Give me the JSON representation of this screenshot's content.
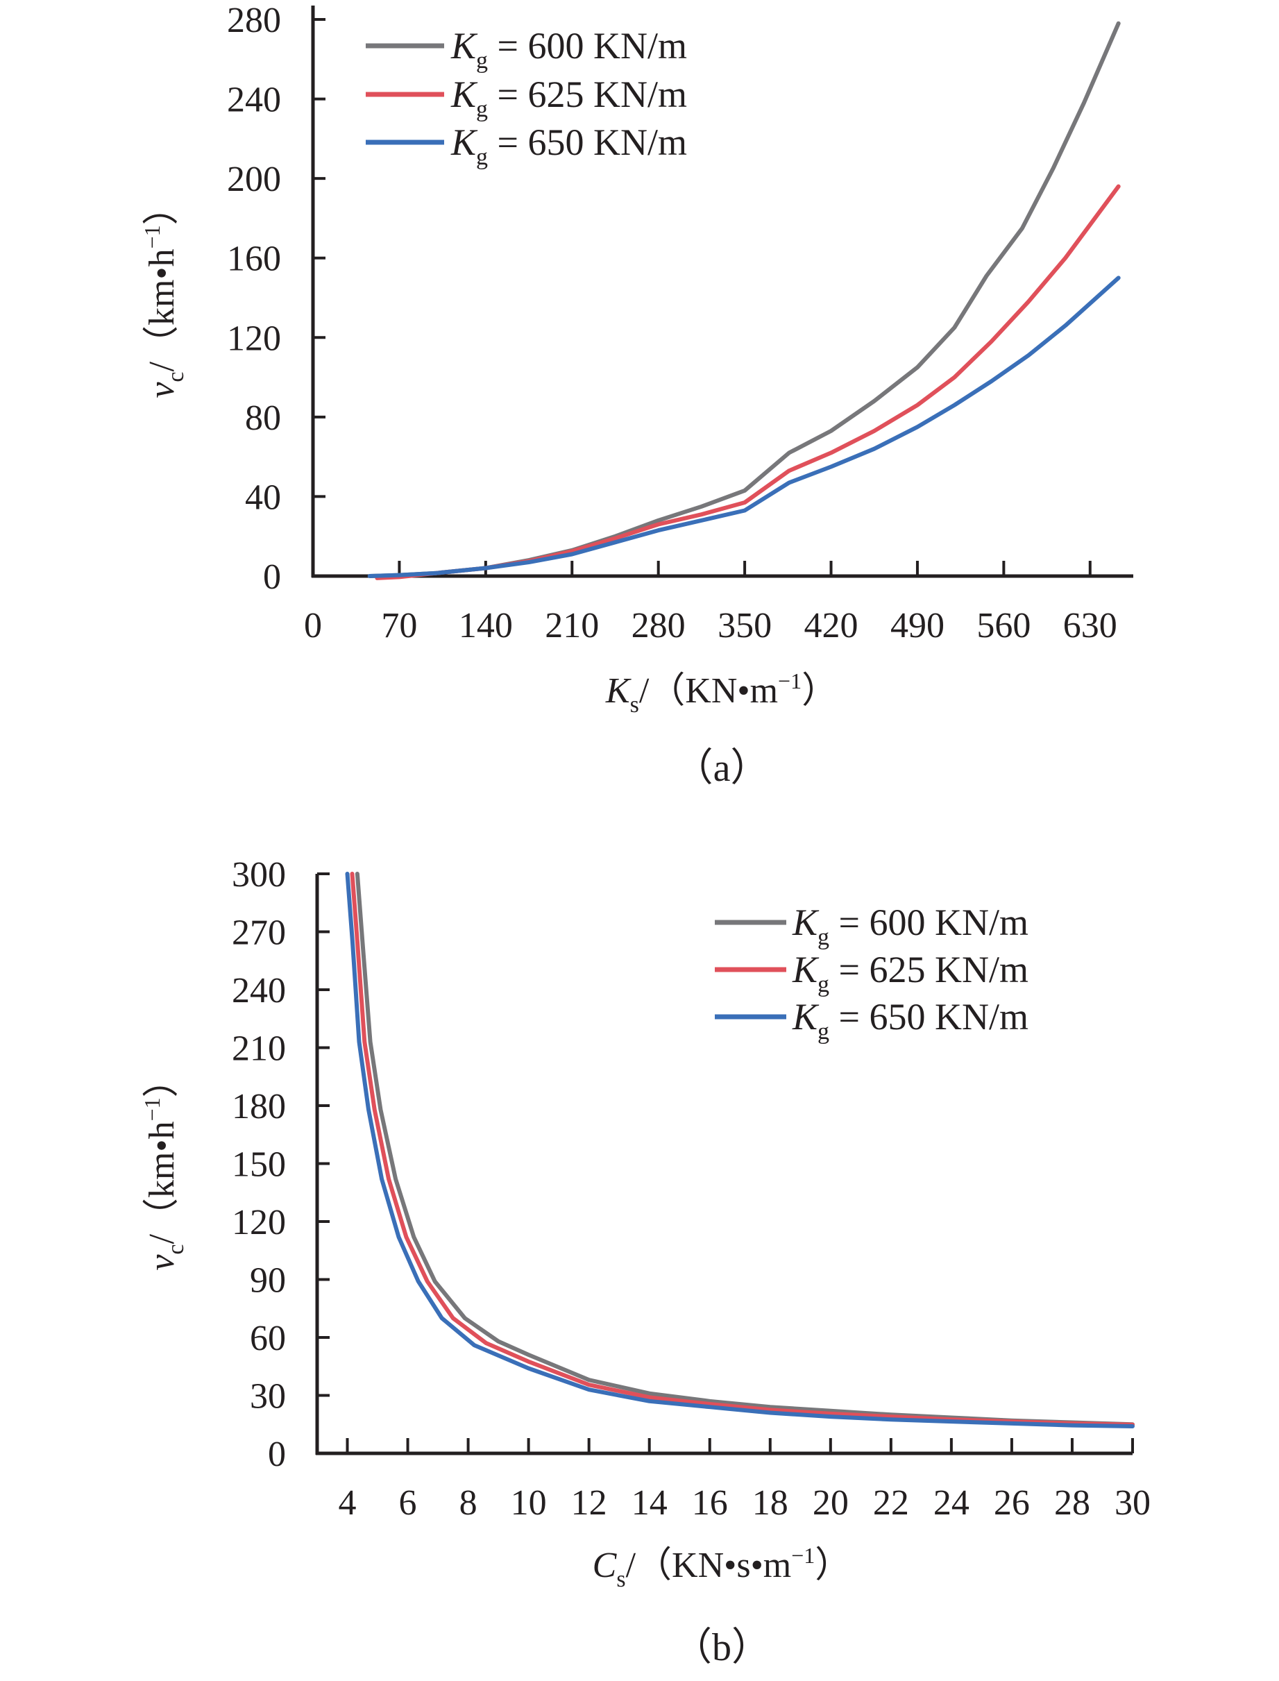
{
  "chart_data": [
    {
      "id": "a",
      "type": "line",
      "caption": "（a）",
      "title": "",
      "xlabel": {
        "var": "K",
        "sub": "s",
        "unit": "/（KN•m",
        "sup": "−1",
        "close": "）"
      },
      "ylabel": {
        "var": "v",
        "sub": "c",
        "unit": "/（km•h",
        "sup": "−1",
        "close": "）"
      },
      "xlim": [
        0,
        665
      ],
      "ylim": [
        0,
        280
      ],
      "xticks": [
        0,
        70,
        140,
        210,
        280,
        350,
        420,
        490,
        560,
        630
      ],
      "yticks": [
        0,
        40,
        80,
        120,
        160,
        200,
        240,
        280
      ],
      "grid": false,
      "legend_position": "top-left",
      "series": [
        {
          "name": "Kg = 600 KN/m",
          "label_var": "K",
          "label_sub": "g",
          "label_rest": " = 600 KN/m",
          "color": "#77777a",
          "x": [
            46,
            70,
            100,
            140,
            175,
            210,
            245,
            280,
            315,
            350,
            386,
            420,
            455,
            490,
            520,
            546,
            575,
            600,
            625,
            653
          ],
          "y": [
            0,
            0.5,
            1.5,
            4,
            8,
            13,
            20,
            28,
            35,
            43,
            62,
            73,
            88,
            105,
            125,
            151,
            175,
            205,
            238,
            278
          ]
        },
        {
          "name": "Kg = 625 KN/m",
          "label_var": "K",
          "label_sub": "g",
          "label_rest": " = 625 KN/m",
          "color": "#e0505a",
          "x": [
            52,
            70,
            100,
            140,
            175,
            210,
            245,
            280,
            315,
            350,
            386,
            420,
            455,
            490,
            520,
            550,
            580,
            610,
            653
          ],
          "y": [
            -1,
            -0.5,
            1.5,
            4,
            7.5,
            12.5,
            19,
            26,
            31,
            37,
            53,
            62,
            73,
            86,
            100,
            118,
            138,
            160,
            196
          ]
        },
        {
          "name": "Kg = 650 KN/m",
          "label_var": "K",
          "label_sub": "g",
          "label_rest": " = 650 KN/m",
          "color": "#3a6fb8",
          "x": [
            46,
            70,
            100,
            140,
            175,
            210,
            245,
            280,
            315,
            350,
            386,
            420,
            455,
            490,
            520,
            550,
            580,
            610,
            653
          ],
          "y": [
            0,
            0.5,
            1.5,
            4,
            7,
            11,
            17,
            23,
            28,
            33,
            47,
            55,
            64,
            75,
            86,
            98,
            111,
            126,
            150
          ]
        }
      ]
    },
    {
      "id": "b",
      "type": "line",
      "caption": "（b）",
      "title": "",
      "xlabel": {
        "var": "C",
        "sub": "s",
        "unit": "/（KN•s•m",
        "sup": "−1",
        "close": "）"
      },
      "ylabel": {
        "var": "v",
        "sub": "c",
        "unit": "/（km•h",
        "sup": "−1",
        "close": "）"
      },
      "xlim": [
        3,
        30
      ],
      "ylim": [
        0,
        300
      ],
      "xticks": [
        4,
        6,
        8,
        10,
        12,
        14,
        16,
        18,
        20,
        22,
        24,
        26,
        28,
        30
      ],
      "yticks": [
        0,
        30,
        60,
        90,
        120,
        150,
        180,
        210,
        240,
        270,
        300
      ],
      "grid": false,
      "legend_position": "top-right",
      "series": [
        {
          "name": "Kg = 600 KN/m",
          "label_var": "K",
          "label_sub": "g",
          "label_rest": " = 600 KN/m",
          "color": "#77777a",
          "x": [
            4.33,
            4.5,
            4.76,
            5.1,
            5.6,
            6.2,
            6.9,
            7.89,
            9,
            10,
            12,
            14,
            16,
            18,
            20,
            22,
            24,
            26,
            28,
            30
          ],
          "y": [
            300,
            265,
            213,
            178,
            142,
            112,
            89,
            70,
            58,
            51,
            38,
            31,
            27,
            24,
            22,
            20,
            18.5,
            17,
            16,
            15
          ]
        },
        {
          "name": "Kg = 625 KN/m",
          "label_var": "K",
          "label_sub": "g",
          "label_rest": " = 625 KN/m",
          "color": "#e0505a",
          "x": [
            4.16,
            4.33,
            4.57,
            4.9,
            5.37,
            5.95,
            6.65,
            7.5,
            8.6,
            10,
            12,
            14,
            16,
            18,
            20,
            22,
            24,
            26,
            28,
            30
          ],
          "y": [
            300,
            265,
            213,
            178,
            142,
            112,
            89,
            70,
            57,
            47.5,
            35.5,
            29,
            25.5,
            22.5,
            20.5,
            19,
            17.5,
            16.5,
            15.5,
            14.8
          ]
        },
        {
          "name": "Kg = 650 KN/m",
          "label_var": "K",
          "label_sub": "g",
          "label_rest": " = 650 KN/m",
          "color": "#3a6fb8",
          "x": [
            4.0,
            4.17,
            4.39,
            4.7,
            5.14,
            5.7,
            6.35,
            7.13,
            8.2,
            10,
            12,
            14,
            16,
            18,
            20,
            22,
            24,
            26,
            28,
            30
          ],
          "y": [
            300,
            265,
            213,
            178,
            142,
            112,
            89,
            70,
            56,
            44,
            33,
            27,
            24,
            21,
            19,
            17.5,
            16.5,
            15.5,
            14.5,
            14
          ]
        }
      ]
    }
  ]
}
